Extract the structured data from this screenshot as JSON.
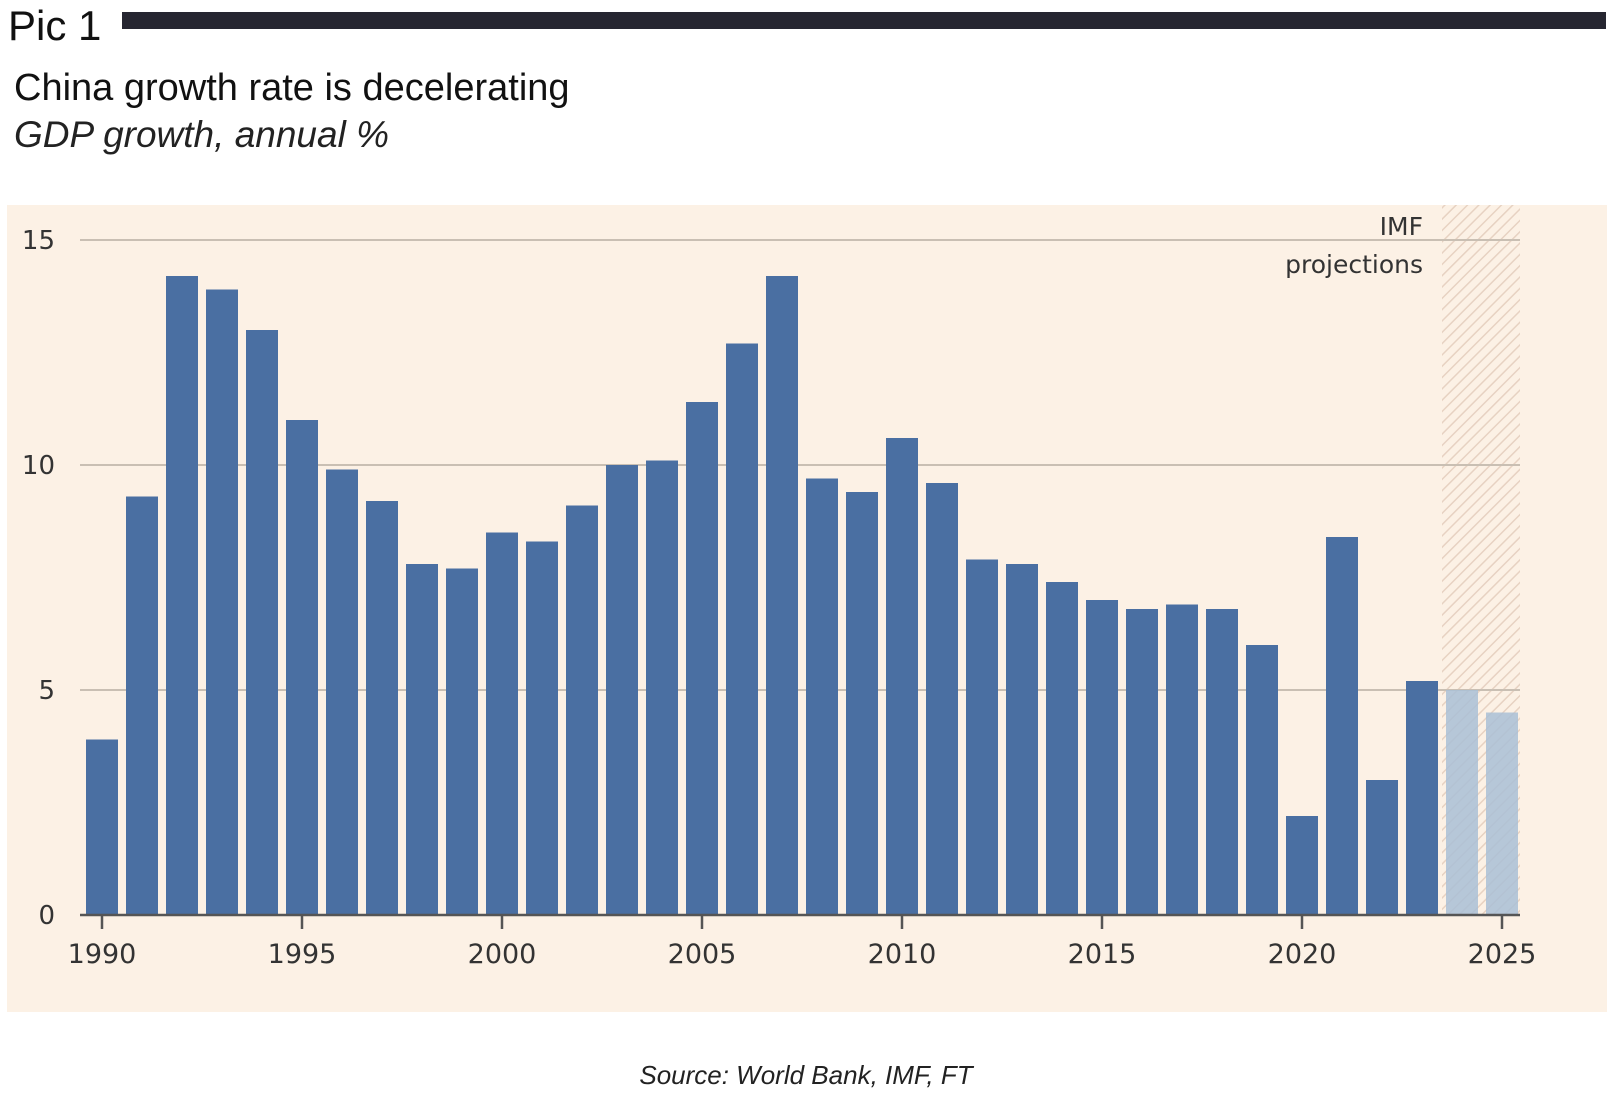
{
  "header": {
    "pic_label": "Pic 1",
    "title": "China growth rate is decelerating",
    "subtitle": "GDP growth, annual %"
  },
  "source": "Source: World Bank, IMF, FT",
  "colors": {
    "background": "#fcf1e5",
    "bar": "#4a6fa2",
    "projection_bar": "#a9bfd6",
    "grid": "#c9bfb3",
    "axis": "#555555",
    "rule": "#262631"
  },
  "chart_data": {
    "type": "bar",
    "title": "China growth rate is decelerating",
    "subtitle": "GDP growth, annual %",
    "xlabel": "",
    "ylabel": "",
    "ylim": [
      0,
      15
    ],
    "yticks": [
      0,
      5,
      10,
      15
    ],
    "xticks": [
      "1990",
      "1995",
      "2000",
      "2005",
      "2010",
      "2015",
      "2020",
      "2025"
    ],
    "grid": true,
    "categories": [
      1990,
      1991,
      1992,
      1993,
      1994,
      1995,
      1996,
      1997,
      1998,
      1999,
      2000,
      2001,
      2002,
      2003,
      2004,
      2005,
      2006,
      2007,
      2008,
      2009,
      2010,
      2011,
      2012,
      2013,
      2014,
      2015,
      2016,
      2017,
      2018,
      2019,
      2020,
      2021,
      2022,
      2023,
      2024,
      2025
    ],
    "values": [
      3.9,
      9.3,
      14.2,
      13.9,
      13.0,
      11.0,
      9.9,
      9.2,
      7.8,
      7.7,
      8.5,
      8.3,
      9.1,
      10.0,
      10.1,
      11.4,
      12.7,
      14.2,
      9.7,
      9.4,
      10.6,
      9.6,
      7.9,
      7.8,
      7.4,
      7.0,
      6.8,
      6.9,
      6.8,
      6.0,
      2.2,
      8.4,
      3.0,
      5.2,
      5.0,
      4.5
    ],
    "projected_from": 2024,
    "annotation": {
      "line1": "IMF",
      "line2": "projections"
    }
  }
}
